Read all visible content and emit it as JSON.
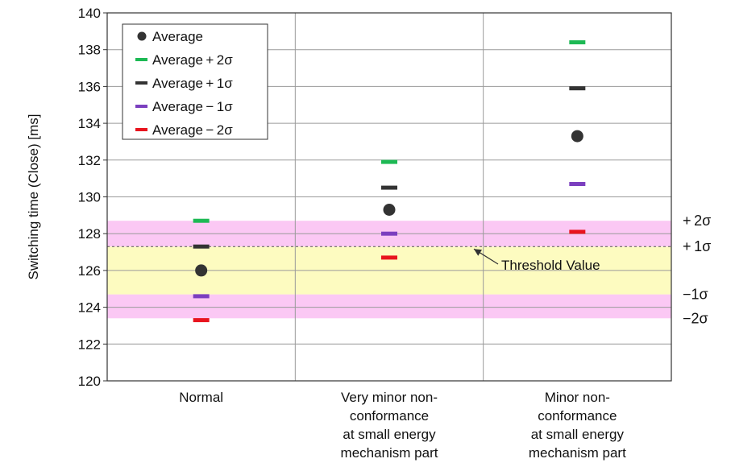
{
  "chart_data": {
    "type": "scatter",
    "ylabel": "Switching time  (Close) [ms]",
    "ylim": [
      120,
      140
    ],
    "yticks": [
      120,
      122,
      124,
      126,
      128,
      130,
      132,
      134,
      136,
      138,
      140
    ],
    "grid": true,
    "legend_position": "top-left",
    "categories": [
      [
        "Normal"
      ],
      [
        "Very minor non-",
        "conformance",
        "at small energy",
        "mechanism part"
      ],
      [
        "Minor non-",
        "conformance",
        "at small energy",
        "mechanism part"
      ]
    ],
    "series": [
      {
        "name": "Average",
        "marker": "dot",
        "color": "#333333",
        "values": [
          126.0,
          129.3,
          133.3
        ]
      },
      {
        "name": "Average + 2σ",
        "marker": "dash",
        "color": "#1db954",
        "values": [
          128.7,
          131.9,
          138.4
        ]
      },
      {
        "name": "Average + 1σ",
        "marker": "dash",
        "color": "#333333",
        "values": [
          127.3,
          130.5,
          135.9
        ]
      },
      {
        "name": "Average − 1σ",
        "marker": "dash",
        "color": "#7b3fbf",
        "values": [
          124.6,
          128.0,
          130.7
        ]
      },
      {
        "name": "Average − 2σ",
        "marker": "dash",
        "color": "#e8141e",
        "values": [
          123.3,
          126.7,
          128.1
        ]
      }
    ],
    "bands": [
      {
        "from": 123.4,
        "to": 124.7,
        "color": "#fbc8f4"
      },
      {
        "from": 124.7,
        "to": 127.3,
        "color": "#fdfbc0"
      },
      {
        "from": 127.3,
        "to": 128.7,
        "color": "#fbc8f4"
      }
    ],
    "threshold": {
      "value": 127.3,
      "label": "Threshold Value"
    },
    "sigma_labels": [
      {
        "text": "+ 2σ",
        "value": 128.7
      },
      {
        "text": "+ 1σ",
        "value": 127.3
      },
      {
        "text": "−1σ",
        "value": 124.7
      },
      {
        "text": "−2σ",
        "value": 123.4
      }
    ]
  }
}
